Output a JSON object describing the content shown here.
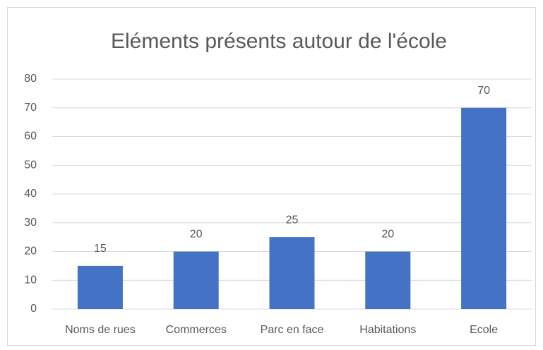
{
  "chart_data": {
    "type": "bar",
    "title": "Eléments présents autour de l'école",
    "categories": [
      "Noms de rues",
      "Commerces",
      "Parc en face",
      "Habitations",
      "Ecole"
    ],
    "values": [
      15,
      20,
      25,
      20,
      70
    ],
    "color": "#4472c4",
    "ylim": [
      0,
      80
    ],
    "yticks": [
      0,
      10,
      20,
      30,
      40,
      50,
      60,
      70,
      80
    ],
    "grid": true,
    "data_labels": true
  }
}
